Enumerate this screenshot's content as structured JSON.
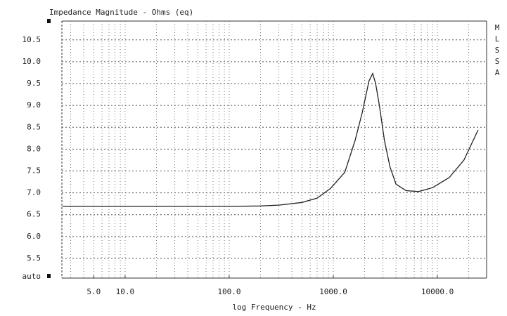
{
  "chart_data": {
    "type": "line",
    "title": "Impedance Magnitude - Ohms (eq)",
    "x_label": "log Frequency - Hz",
    "y_scale_label": "auto",
    "side_label": [
      "M",
      "L",
      "S",
      "S",
      "A"
    ],
    "x_log": true,
    "grid": true,
    "xlim": [
      2.47,
      29700
    ],
    "ylim": [
      5.05,
      10.93
    ],
    "xticks": [
      {
        "value": 5,
        "label": "5.0"
      },
      {
        "value": 10,
        "label": "10.0"
      },
      {
        "value": 100,
        "label": "100.0"
      },
      {
        "value": 1000,
        "label": "1000.0"
      },
      {
        "value": 10000,
        "label": "10000.0"
      }
    ],
    "xgrid": [
      3,
      4,
      5,
      6,
      7,
      8,
      9,
      10,
      20,
      30,
      40,
      50,
      60,
      70,
      80,
      90,
      100,
      200,
      300,
      400,
      500,
      600,
      700,
      800,
      900,
      1000,
      2000,
      3000,
      4000,
      5000,
      6000,
      7000,
      8000,
      9000,
      10000,
      20000
    ],
    "yticks": [
      {
        "value": 10.5,
        "label": "10.5"
      },
      {
        "value": 10,
        "label": "10.0"
      },
      9.5,
      {
        "value": 9,
        "label": "9.0"
      },
      8.5,
      {
        "value": 8,
        "label": "8.0"
      },
      7.5,
      {
        "value": 7,
        "label": "7.0"
      },
      6.5,
      {
        "value": 6,
        "label": "6.0"
      },
      5.5
    ],
    "x": [
      2.5,
      100,
      200,
      300,
      500,
      700,
      940,
      1290,
      1620,
      1900,
      2200,
      2390,
      2550,
      2770,
      3100,
      3500,
      4000,
      5000,
      6600,
      9000,
      13000,
      18000,
      24600
    ],
    "series": [
      {
        "name": "Impedance",
        "color": "#222222",
        "values": [
          6.69,
          6.69,
          6.7,
          6.72,
          6.78,
          6.88,
          7.1,
          7.47,
          8.2,
          8.84,
          9.56,
          9.73,
          9.5,
          9.0,
          8.2,
          7.6,
          7.2,
          7.05,
          7.03,
          7.12,
          7.35,
          7.75,
          8.44
        ]
      }
    ]
  }
}
